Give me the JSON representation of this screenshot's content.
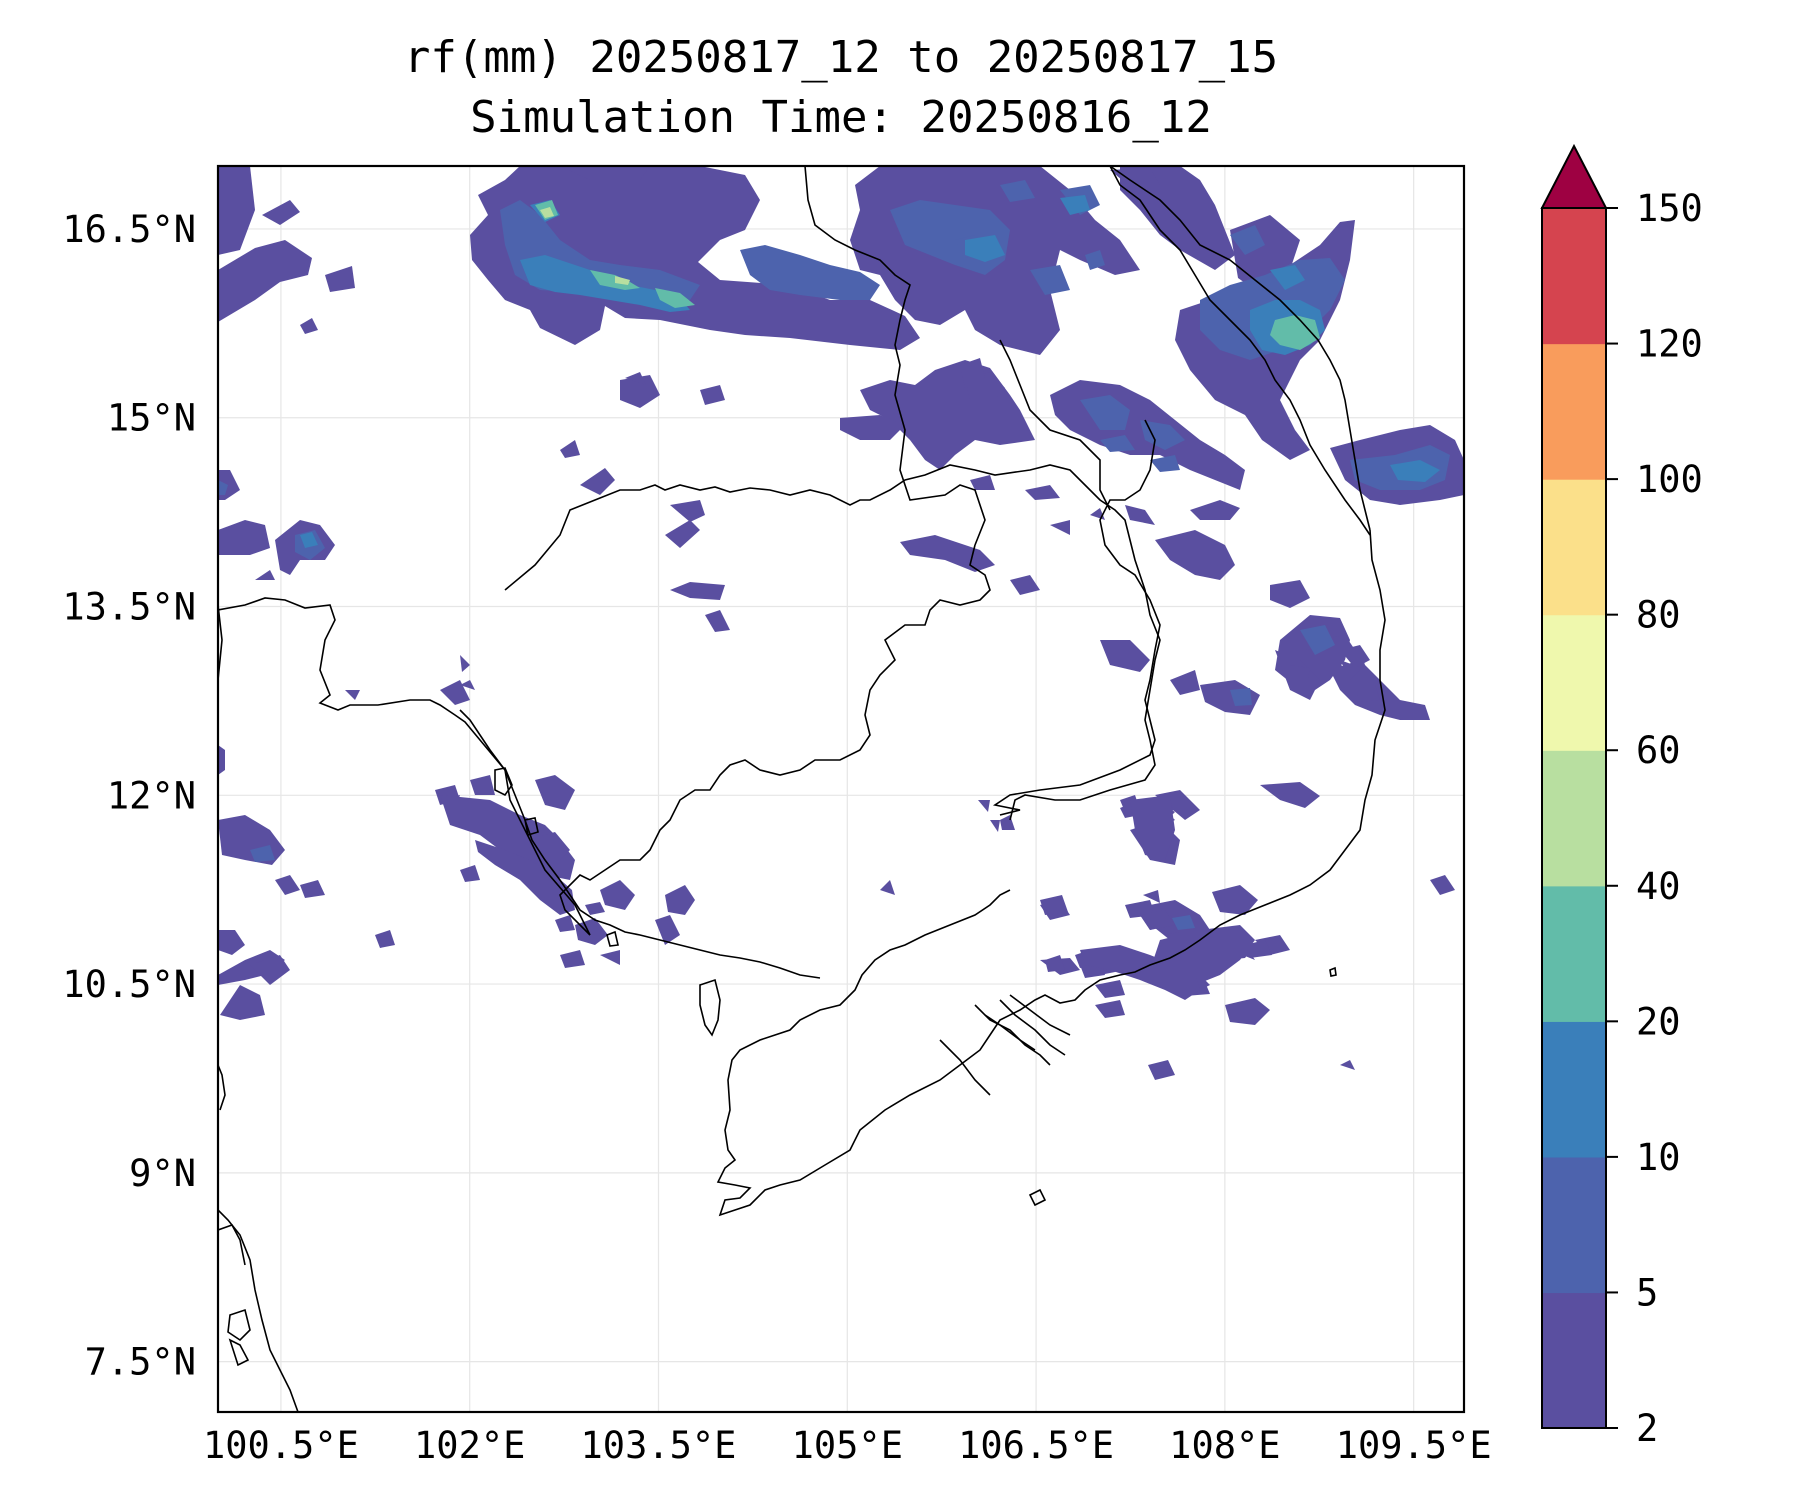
{
  "title": "rf(mm) 20250817_12 to 20250817_15",
  "subtitle": "Simulation Time: 20250816_12",
  "map": {
    "lon_range": [
      100.0,
      109.9
    ],
    "lat_range": [
      7.1,
      17.0
    ],
    "lon_ticks": [
      "100.5°E",
      "102°E",
      "103.5°E",
      "105°E",
      "106.5°E",
      "108°E",
      "109.5°E"
    ],
    "lat_ticks": [
      "16.5°N",
      "15°N",
      "13.5°N",
      "12°N",
      "10.5°N",
      "9°N",
      "7.5°N"
    ],
    "gridlines": true
  },
  "colorbar": {
    "levels": [
      "2",
      "5",
      "10",
      "20",
      "40",
      "60",
      "80",
      "100",
      "120",
      "150"
    ],
    "colors": [
      "#5a4fa0",
      "#4d63ad",
      "#3a7fba",
      "#62bca9",
      "#b8dfa0",
      "#eff8ad",
      "#fbe08a",
      "#f99c5c",
      "#d5444f"
    ],
    "extend_color": "#9e0142",
    "extend": "max"
  }
}
